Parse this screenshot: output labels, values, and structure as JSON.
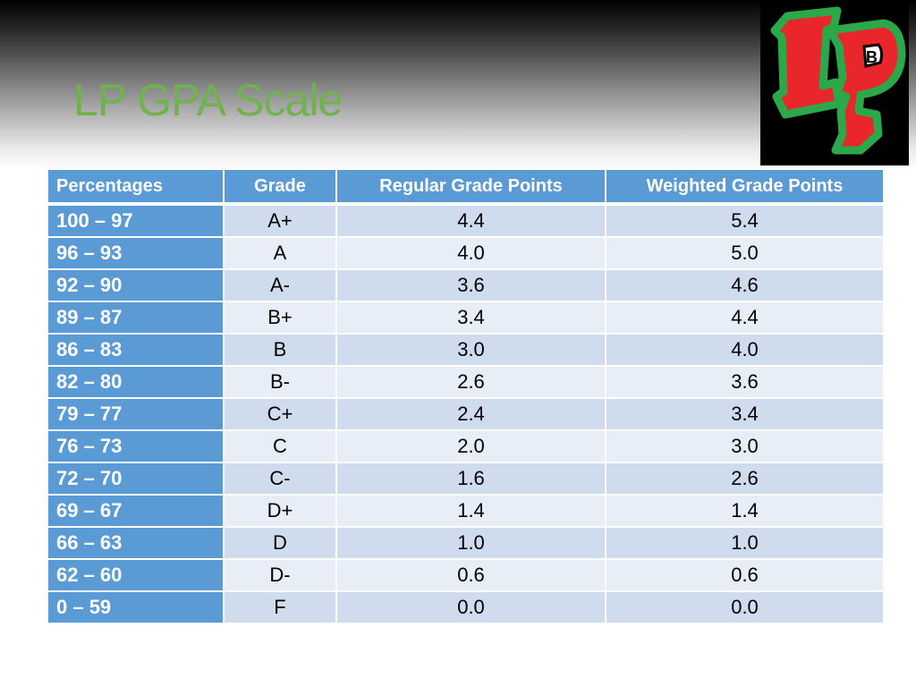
{
  "slide": {
    "title": "LP GPA Scale"
  },
  "logo": {
    "text": "LP",
    "colors": {
      "fill": "#e8262b",
      "outline": "#2ba84a",
      "background": "#000000"
    }
  },
  "table": {
    "headers": [
      "Percentages",
      "Grade",
      "Regular Grade Points",
      "Weighted Grade Points"
    ],
    "rows": [
      [
        "100 – 97",
        "A+",
        "4.4",
        "5.4"
      ],
      [
        "96 – 93",
        "A",
        "4.0",
        "5.0"
      ],
      [
        "92 – 90",
        "A-",
        "3.6",
        "4.6"
      ],
      [
        "89 – 87",
        "B+",
        "3.4",
        "4.4"
      ],
      [
        "86 – 83",
        "B",
        "3.0",
        "4.0"
      ],
      [
        "82 – 80",
        "B-",
        "2.6",
        "3.6"
      ],
      [
        "79 – 77",
        "C+",
        "2.4",
        "3.4"
      ],
      [
        "76 – 73",
        "C",
        "2.0",
        "3.0"
      ],
      [
        "72 – 70",
        "C-",
        "1.6",
        "2.6"
      ],
      [
        "69 – 67",
        "D+",
        "1.4",
        "1.4"
      ],
      [
        "66 – 63",
        "D",
        "1.0",
        "1.0"
      ],
      [
        "62 – 60",
        "D-",
        "0.6",
        "0.6"
      ],
      [
        "0 – 59",
        "F",
        "0.0",
        "0.0"
      ]
    ]
  },
  "colors": {
    "title": "#6fb24e",
    "header_bg": "#5b9bd5",
    "row_band_dark": "#cfdcee",
    "row_band_light": "#e8eef7"
  }
}
